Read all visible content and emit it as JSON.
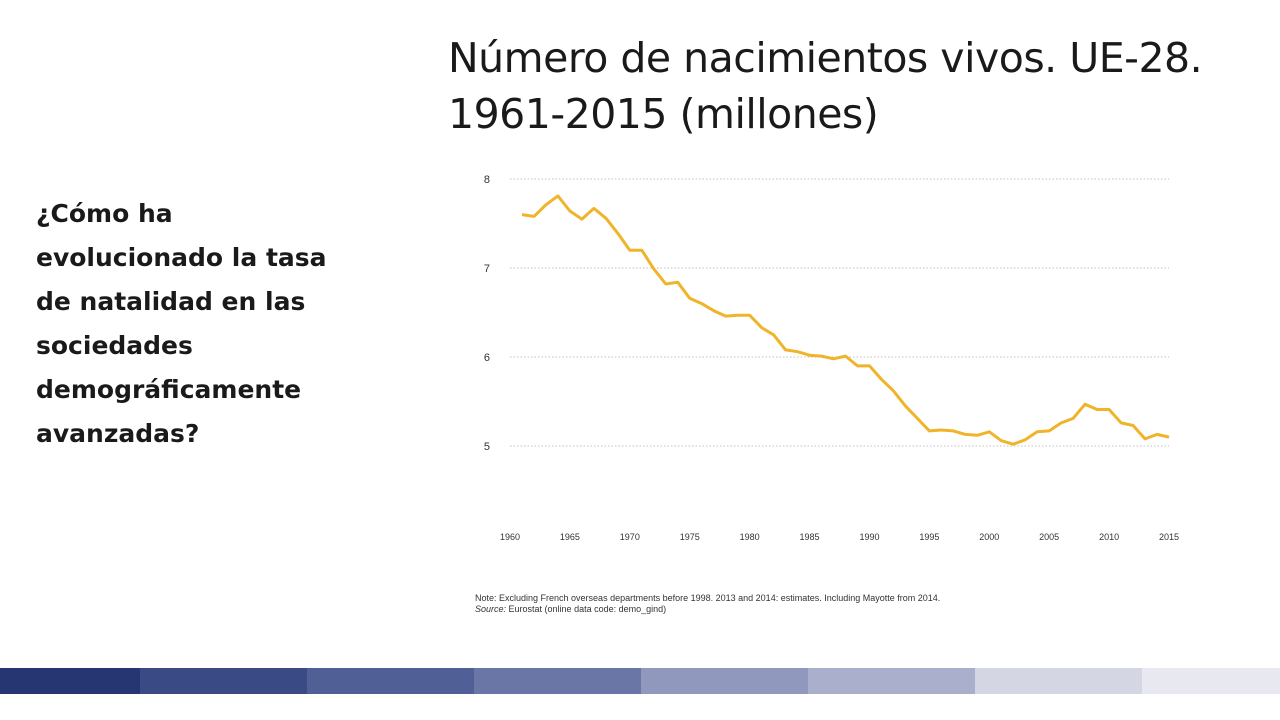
{
  "slide": {
    "title": "Número de nacimientos vivos. UE-28. 1961-2015 (millones)",
    "question": "¿Cómo ha evolucionado la tasa de natalidad en las sociedades demográficamente avanzadas?",
    "note": "Note: Excluding French overseas departments before 1998. 2013 and 2014: estimates. Including Mayotte from 2014.",
    "source_label": "Source:",
    "source_text": " Eurostat (online data code: demo_gind)"
  },
  "colors": {
    "line": "#f0b429",
    "grid": "#bfbfbf",
    "footer": [
      "#263673",
      "#3a4a85",
      "#505f96",
      "#6a77a6",
      "#9099bd",
      "#aab0cb",
      "#d4d7e3",
      "#e8e9f0"
    ]
  },
  "chart_data": {
    "type": "line",
    "title": "",
    "xlabel": "",
    "ylabel": "",
    "xlim": [
      1960,
      2015
    ],
    "ylim": [
      4,
      8
    ],
    "yticks": [
      5,
      6,
      7,
      8
    ],
    "xticks": [
      1960,
      1965,
      1970,
      1975,
      1980,
      1985,
      1990,
      1995,
      2000,
      2005,
      2010,
      2015
    ],
    "grid": true,
    "series": [
      {
        "x": [
          1961,
          1962,
          1963,
          1964,
          1965,
          1966,
          1967,
          1968,
          1969,
          1970,
          1971,
          1972,
          1973,
          1974,
          1975,
          1976,
          1977,
          1978,
          1979,
          1980,
          1981,
          1982,
          1983,
          1984,
          1985,
          1986,
          1987,
          1988,
          1989,
          1990,
          1991,
          1992,
          1993,
          1994,
          1995,
          1996,
          1997,
          1998,
          1999,
          2000,
          2001,
          2002,
          2003,
          2004,
          2005,
          2006,
          2007,
          2008,
          2009,
          2010,
          2011,
          2012,
          2013,
          2014,
          2015
        ],
        "y": [
          7.6,
          7.58,
          7.71,
          7.81,
          7.64,
          7.55,
          7.67,
          7.56,
          7.39,
          7.2,
          7.2,
          6.99,
          6.82,
          6.84,
          6.66,
          6.6,
          6.52,
          6.46,
          6.47,
          6.47,
          6.33,
          6.25,
          6.08,
          6.06,
          6.02,
          6.01,
          5.98,
          6.01,
          5.9,
          5.9,
          5.75,
          5.62,
          5.45,
          5.31,
          5.17,
          5.18,
          5.17,
          5.13,
          5.12,
          5.16,
          5.06,
          5.02,
          5.07,
          5.16,
          5.17,
          5.26,
          5.31,
          5.47,
          5.41,
          5.41,
          5.26,
          5.23,
          5.08,
          5.13,
          5.1
        ]
      }
    ]
  }
}
